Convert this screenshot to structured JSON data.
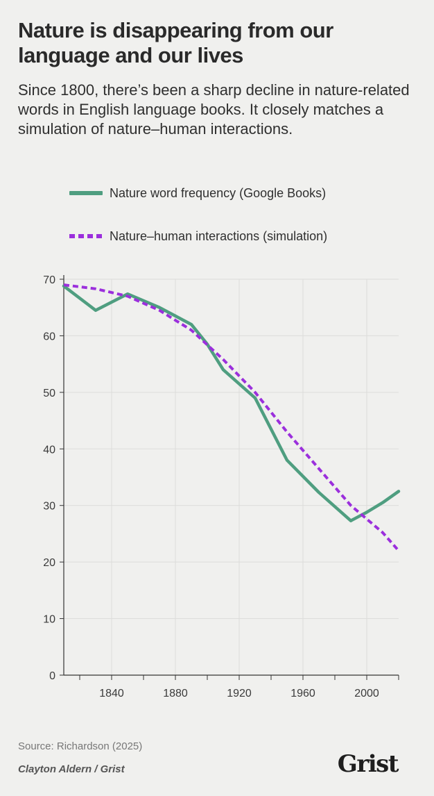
{
  "title": "Nature is disappearing from our language and our lives",
  "subtitle": "Since 1800, there’s been a sharp decline in nature-related words in English language books. It closely matches a simulation of nature–human interactions.",
  "legend": {
    "series1": "Nature word frequency (Google Books)",
    "series2": "Nature–human interactions (simulation)"
  },
  "colors": {
    "series1": "#4f9e80",
    "series2": "#9b2fdc"
  },
  "chart_data": {
    "type": "line",
    "title": "Nature is disappearing from our language and our lives",
    "xlabel": "",
    "ylabel": "",
    "xlim": [
      1810,
      2020
    ],
    "ylim": [
      0,
      70
    ],
    "grid": true,
    "legend_position": "top",
    "x_ticks": [
      1840,
      1880,
      1920,
      1960,
      2000
    ],
    "y_ticks": [
      0,
      10,
      20,
      30,
      40,
      50,
      60,
      70
    ],
    "series": [
      {
        "name": "Nature word frequency (Google Books)",
        "style": "solid",
        "x": [
          1810,
          1830,
          1850,
          1870,
          1890,
          1900,
          1910,
          1930,
          1950,
          1970,
          1990,
          2000,
          2010,
          2020
        ],
        "values": [
          68.8,
          64.5,
          67.4,
          65.0,
          62.0,
          58.5,
          54.0,
          49.0,
          38.0,
          32.3,
          27.3,
          28.8,
          30.5,
          32.5
        ]
      },
      {
        "name": "Nature–human interactions (simulation)",
        "style": "dashed",
        "x": [
          1810,
          1830,
          1850,
          1870,
          1890,
          1910,
          1930,
          1950,
          1970,
          1990,
          2010,
          2020
        ],
        "values": [
          69.0,
          68.3,
          67.0,
          64.5,
          61.0,
          55.8,
          50.0,
          43.0,
          36.5,
          30.0,
          25.2,
          22.0
        ]
      }
    ]
  },
  "source": "Source: Richardson (2025)",
  "credit": "Clayton Aldern / Grist",
  "logo": "Grist"
}
